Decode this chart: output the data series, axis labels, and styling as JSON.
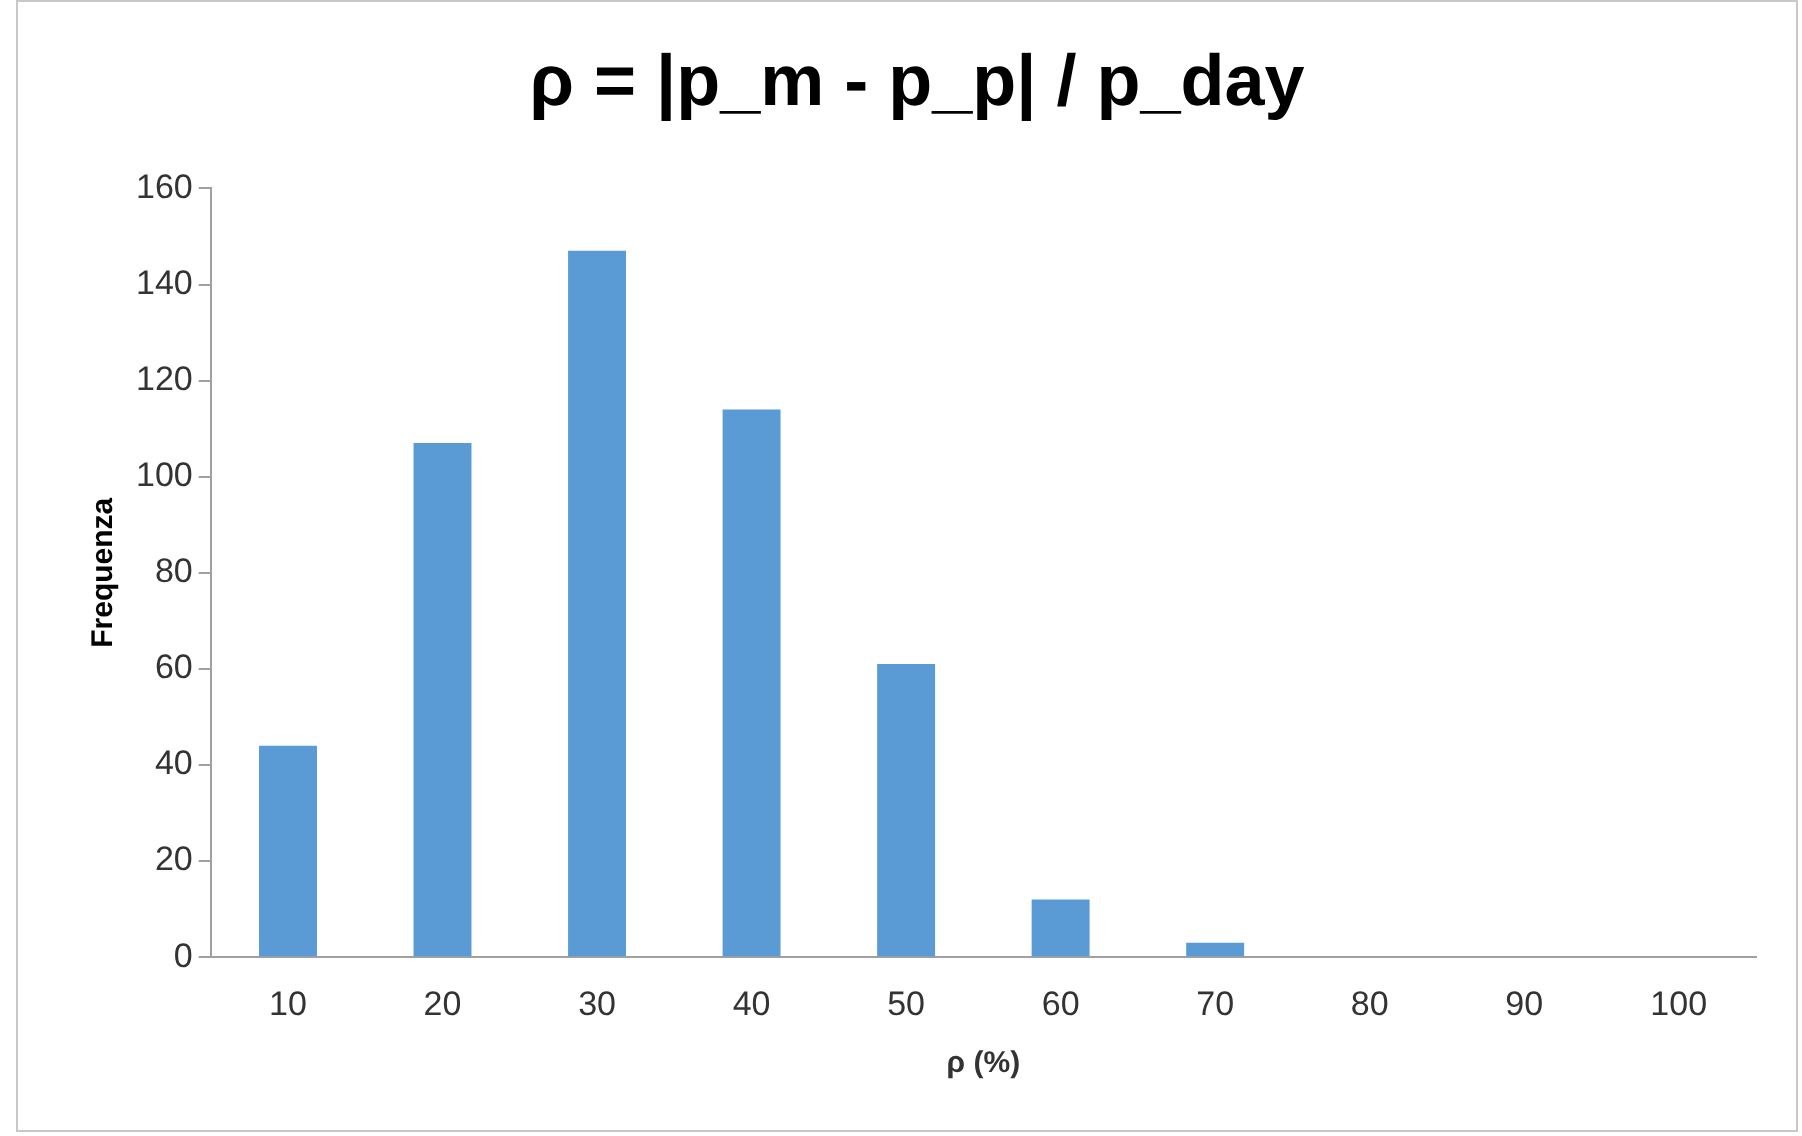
{
  "chart_data": {
    "type": "bar",
    "title": "ρ = |p_m - p_p| / p_day",
    "xlabel": "ρ (%)",
    "ylabel": "Frequenza",
    "categories": [
      "10",
      "20",
      "30",
      "40",
      "50",
      "60",
      "70",
      "80",
      "90",
      "100"
    ],
    "values": [
      44,
      107,
      147,
      114,
      61,
      12,
      3,
      0,
      0,
      0
    ],
    "color": "#5b9bd5",
    "ylim": [
      0,
      160
    ],
    "yticks": [
      0,
      20,
      40,
      60,
      80,
      100,
      120,
      140,
      160
    ],
    "grid": false,
    "legend": false
  }
}
